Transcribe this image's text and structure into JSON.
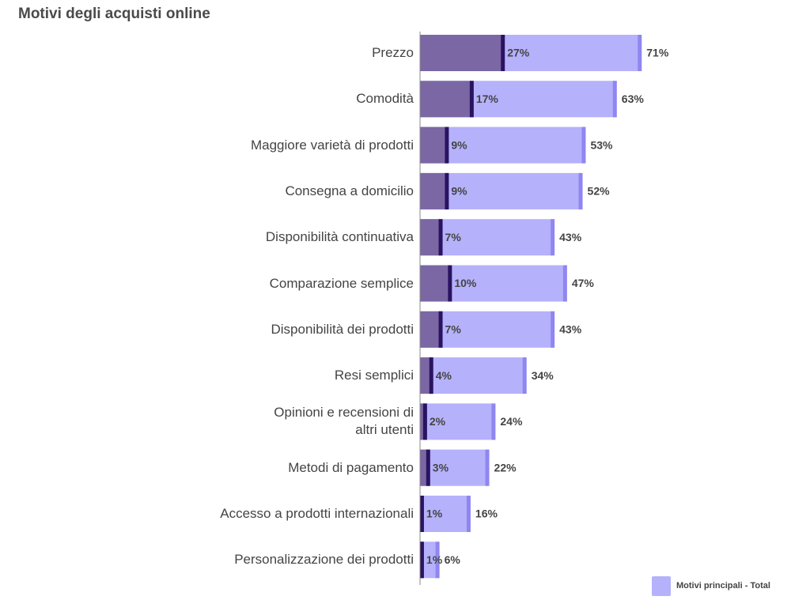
{
  "chart_data": {
    "type": "overlap-bar",
    "title": "Motivi degli acquisti online",
    "categories": [
      "Prezzo",
      "Comodità",
      "Maggiore varietà di prodotti",
      "Consegna a domicilio",
      "Disponibilità continuativa",
      "Comparazione semplice",
      "Disponibilità dei prodotti",
      "Resi semplici",
      "Opinioni e recensioni di\naltri utenti",
      "Metodi di pagamento",
      "Accesso a prodotti internazionali",
      "Personalizzazione dei prodotti"
    ],
    "series": [
      {
        "name": "Motivi principali - Total",
        "color": "#b5b1fb",
        "edge_color": "#8f86f0",
        "values": [
          71,
          63,
          53,
          52,
          43,
          47,
          43,
          34,
          24,
          22,
          16,
          6
        ],
        "value_labels": [
          "71%",
          "63%",
          "53%",
          "52%",
          "43%",
          "47%",
          "43%",
          "34%",
          "24%",
          "22%",
          "16%",
          "6%"
        ]
      },
      {
        "color": "#7b67a4",
        "edge_color": "#2a1360",
        "values": [
          27,
          17,
          9,
          9,
          7,
          10,
          7,
          4,
          2,
          3,
          1,
          1
        ],
        "value_labels": [
          "27%",
          "17%",
          "9%",
          "9%",
          "7%",
          "10%",
          "7%",
          "4%",
          "2%",
          "3%",
          "1%",
          "1%"
        ]
      }
    ],
    "xlim": [
      0,
      75
    ]
  }
}
